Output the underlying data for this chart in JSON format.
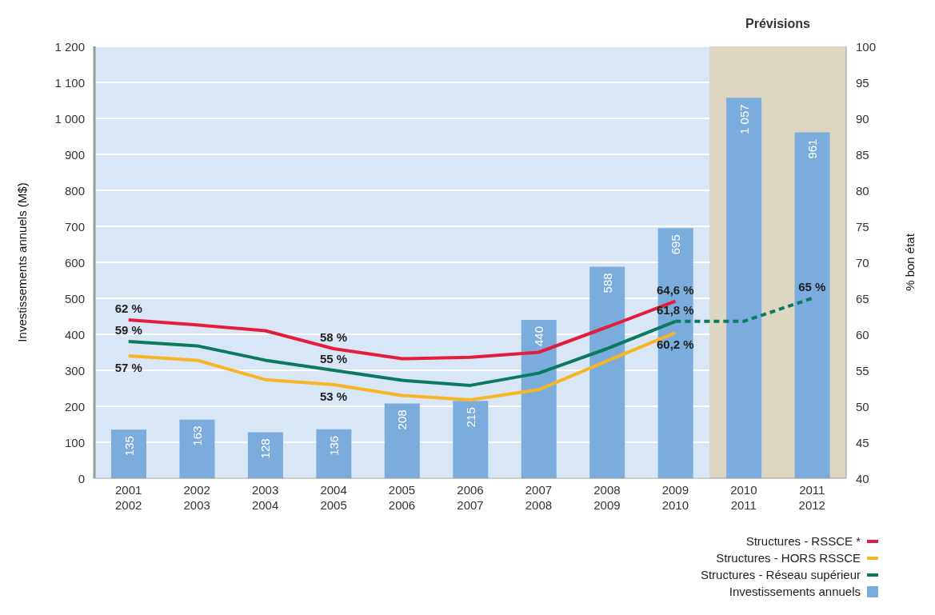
{
  "chart_data": {
    "type": "bar",
    "categories": [
      "2001\n2002",
      "2002\n2003",
      "2003\n2004",
      "2004\n2005",
      "2005\n2006",
      "2006\n2007",
      "2007\n2008",
      "2008\n2009",
      "2009\n2010",
      "2010\n2011",
      "2011\n2012"
    ],
    "ylabel": "Investissements annuels (M$)",
    "y2label": "% bon état",
    "ylim": [
      0,
      1200
    ],
    "yticks": [
      0,
      100,
      200,
      300,
      400,
      500,
      600,
      700,
      800,
      900,
      {
        "value": 1000,
        "label": "1 000"
      },
      {
        "value": 1100,
        "label": "1 100"
      },
      {
        "value": 1200,
        "label": "1 200"
      }
    ],
    "y2lim": [
      40,
      100
    ],
    "y2ticks": [
      40,
      45,
      50,
      55,
      60,
      65,
      70,
      75,
      80,
      85,
      90,
      95,
      100
    ],
    "grid": "y",
    "legend": "bottom right",
    "bands": [
      {
        "axis": "x",
        "from": "2010\n2011",
        "to": "2011\n2012",
        "label": "Prévisions",
        "color": "#ddd6c1"
      }
    ],
    "series": [
      {
        "name": "Structures - RSSCE *",
        "type": "line",
        "axis": "y2",
        "color": "#e31e3c",
        "values": [
          62,
          61.3,
          60.5,
          58,
          56.6,
          56.8,
          57.5,
          61,
          64.6,
          null,
          null
        ],
        "value_labels": [
          "62 %",
          null,
          null,
          "58 %",
          null,
          null,
          null,
          null,
          "64,6 %",
          null,
          null
        ]
      },
      {
        "name": "Structures - HORS RSSCE",
        "type": "line",
        "axis": "y2",
        "color": "#f7b526",
        "values": [
          57,
          56.4,
          53.7,
          53,
          51.5,
          50.9,
          52.3,
          56.3,
          60.2,
          null,
          null
        ],
        "value_labels": [
          "57 %",
          null,
          null,
          "53 %",
          null,
          null,
          null,
          null,
          "60,2 %",
          null,
          null
        ]
      },
      {
        "name": "Structures - Réseau supérieur",
        "type": "line",
        "axis": "y2",
        "color": "#0b7a5e",
        "values": [
          59,
          58.4,
          56.4,
          55,
          53.6,
          52.9,
          54.6,
          58,
          61.8,
          null,
          null
        ],
        "value_labels": [
          "59 %",
          null,
          null,
          "55 %",
          null,
          null,
          null,
          null,
          "61,8 %",
          null,
          null
        ]
      },
      {
        "type": "line",
        "axis": "y2",
        "color": "#0b7a5e",
        "line_style": "dashed",
        "values": [
          null,
          null,
          null,
          null,
          null,
          null,
          null,
          null,
          61.8,
          61.8,
          65
        ],
        "value_labels": [
          null,
          null,
          null,
          null,
          null,
          null,
          null,
          null,
          null,
          null,
          "65 %"
        ]
      },
      {
        "name": "Investissements annuels",
        "color": "#7aaddd",
        "values": [
          135,
          163,
          128,
          136,
          208,
          215,
          440,
          588,
          695,
          1057,
          961
        ],
        "value_labels": [
          "135",
          "163",
          "128",
          "136",
          "208",
          "215",
          "440",
          "588",
          "695",
          "1 057",
          "961"
        ]
      }
    ]
  }
}
